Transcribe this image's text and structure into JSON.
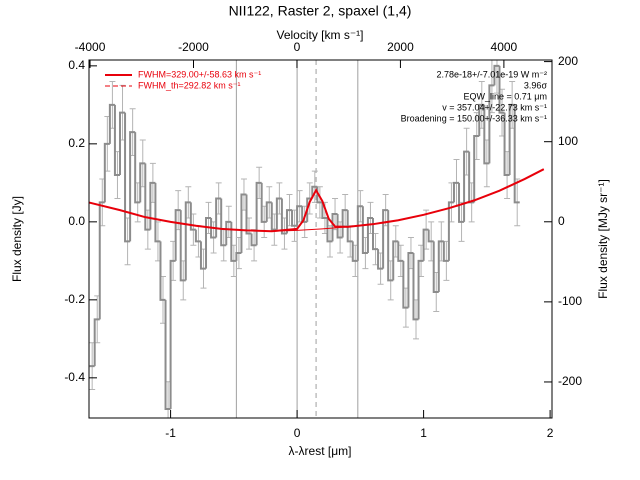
{
  "chart_data": {
    "type": "step",
    "title": "NII122, Raster 2, spaxel (1,4)",
    "x_label": "λ-λrest [μm]",
    "y_label": "Flux density [Jy]",
    "x2_label": "Velocity [km s⁻¹]",
    "y2_label": "Flux density [MJy sr⁻¹]",
    "xlim": [
      -1.645,
      2.015
    ],
    "xticks": [
      -1,
      0,
      1,
      2
    ],
    "ylim": [
      -0.503,
      0.415
    ],
    "yticks": [
      0.4,
      0.2,
      {
        "value": 0,
        "label": "0.0"
      },
      -0.2,
      -0.4
    ],
    "x2lim": [
      -4020,
      4930
    ],
    "x2ticks": [
      -4000,
      -2000,
      0,
      2000,
      4000
    ],
    "y2lim": [
      -245,
      202
    ],
    "y2ticks": [
      -200,
      -100,
      0,
      100,
      200
    ],
    "color": "#8c8c8c",
    "error_color": "#b4b4b4",
    "x": [
      -1.62,
      -1.58,
      -1.54,
      -1.5,
      -1.46,
      -1.42,
      -1.38,
      -1.34,
      -1.3,
      -1.26,
      -1.22,
      -1.18,
      -1.14,
      -1.1,
      -1.06,
      -1.02,
      -0.98,
      -0.94,
      -0.9,
      -0.86,
      -0.82,
      -0.78,
      -0.74,
      -0.7,
      -0.66,
      -0.62,
      -0.58,
      -0.54,
      -0.5,
      -0.46,
      -0.42,
      -0.38,
      -0.34,
      -0.3,
      -0.26,
      -0.22,
      -0.18,
      -0.14,
      -0.1,
      -0.06,
      -0.02,
      0.02,
      0.06,
      0.1,
      0.14,
      0.18,
      0.22,
      0.26,
      0.3,
      0.34,
      0.38,
      0.42,
      0.46,
      0.5,
      0.54,
      0.58,
      0.62,
      0.66,
      0.7,
      0.74,
      0.78,
      0.82,
      0.86,
      0.9,
      0.94,
      0.98,
      1.02,
      1.06,
      1.1,
      1.14,
      1.18,
      1.22,
      1.26,
      1.3,
      1.34,
      1.38,
      1.42,
      1.46,
      1.5,
      1.54,
      1.58,
      1.62,
      1.66,
      1.7,
      1.74
    ],
    "values": [
      -0.37,
      -0.25,
      0.05,
      0.2,
      0.3,
      0.12,
      0.28,
      -0.05,
      0.23,
      0.05,
      0.15,
      -0.02,
      0.1,
      -0.05,
      -0.2,
      -0.48,
      -0.1,
      0.03,
      -0.15,
      0.05,
      -0.02,
      -0.05,
      -0.12,
      0.01,
      -0.04,
      0.06,
      -0.06,
      0.0,
      -0.1,
      -0.08,
      0.07,
      -0.03,
      -0.06,
      0.1,
      0.0,
      0.05,
      -0.02,
      0.06,
      -0.03,
      0.03,
      -0.01,
      0.04,
      0.0,
      0.06,
      0.09,
      0.05,
      0.01,
      -0.05,
      0.02,
      -0.04,
      0.03,
      -0.05,
      -0.1,
      0.04,
      -0.08,
      0.01,
      -0.07,
      -0.12,
      0.03,
      -0.15,
      -0.05,
      -0.1,
      -0.22,
      -0.08,
      -0.25,
      -0.1,
      -0.02,
      -0.05,
      -0.18,
      -0.05,
      -0.1,
      0.05,
      0.1,
      0.0,
      0.18,
      0.05,
      0.22,
      0.3,
      0.15,
      0.35,
      0.4,
      0.28,
      0.12,
      0.3,
      0.05
    ],
    "errors": [
      0.06,
      0.06,
      0.06,
      0.07,
      0.06,
      0.06,
      0.07,
      0.06,
      0.06,
      0.05,
      0.06,
      0.05,
      0.05,
      0.05,
      0.06,
      0.07,
      0.05,
      0.05,
      0.05,
      0.04,
      0.04,
      0.04,
      0.05,
      0.04,
      0.04,
      0.04,
      0.04,
      0.04,
      0.04,
      0.04,
      0.04,
      0.04,
      0.04,
      0.04,
      0.04,
      0.04,
      0.04,
      0.04,
      0.04,
      0.04,
      0.04,
      0.04,
      0.04,
      0.04,
      0.04,
      0.04,
      0.04,
      0.04,
      0.04,
      0.04,
      0.04,
      0.04,
      0.04,
      0.04,
      0.04,
      0.04,
      0.04,
      0.04,
      0.04,
      0.05,
      0.04,
      0.04,
      0.05,
      0.04,
      0.05,
      0.04,
      0.05,
      0.05,
      0.05,
      0.05,
      0.05,
      0.05,
      0.06,
      0.05,
      0.06,
      0.05,
      0.06,
      0.06,
      0.06,
      0.07,
      0.07,
      0.06,
      0.06,
      0.06,
      0.06
    ],
    "vlines": [
      -0.48,
      0,
      0.48
    ],
    "vline_color": "#a0a0a0",
    "center_line": 0.15,
    "series": [
      {
        "name": "FWHM=329.00+/-58.63 km s⁻¹",
        "color": "#e8000b",
        "width": 2,
        "x": [
          -1.65,
          -1.4,
          -1.2,
          -1.0,
          -0.8,
          -0.6,
          -0.4,
          -0.2,
          0,
          0.05,
          0.1,
          0.15,
          0.2,
          0.25,
          0.3,
          0.4,
          0.6,
          0.8,
          1.0,
          1.2,
          1.4,
          1.6,
          1.8,
          1.95
        ],
        "values": [
          0.05,
          0.03,
          0.012,
          0.0,
          -0.01,
          -0.018,
          -0.022,
          -0.024,
          -0.018,
          0.004,
          0.051,
          0.081,
          0.053,
          0.008,
          -0.012,
          -0.013,
          -0.006,
          0.004,
          0.018,
          0.035,
          0.055,
          0.08,
          0.11,
          0.135
        ]
      },
      {
        "name": "FWHM_th=292.82 km s⁻¹",
        "color": "#e8000b",
        "width": 1,
        "legend_dash": true,
        "x": [
          -1.65,
          -1.4,
          -1.2,
          -1.0,
          -0.8,
          -0.6,
          -0.4,
          -0.2,
          0,
          0.2,
          0.4,
          0.6,
          0.8,
          1.0,
          1.2,
          1.4,
          1.6,
          1.8,
          1.95
        ],
        "values": [
          0.05,
          0.03,
          0.012,
          0.0,
          -0.01,
          -0.018,
          -0.022,
          -0.024,
          -0.022,
          -0.018,
          -0.013,
          -0.006,
          0.004,
          0.018,
          0.035,
          0.055,
          0.08,
          0.11,
          0.135
        ]
      }
    ],
    "annotations": [
      "2.78e-18+/-7.01e-19 W m⁻²",
      "3.96σ",
      "EQW_line = 0.71 μm",
      "v = 357.04+/-22.73 km s⁻¹",
      "Broadening = 150.00+/-36.33 km s⁻¹"
    ]
  }
}
